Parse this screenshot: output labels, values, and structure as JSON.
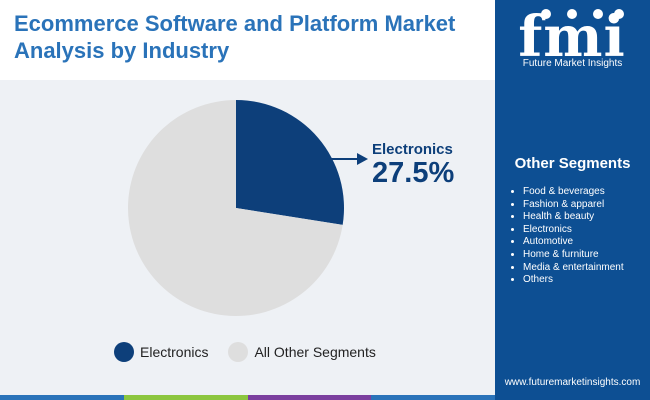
{
  "header": {
    "title": "Ecommerce Software and Platform Market Analysis by Industry"
  },
  "chart_data": {
    "type": "pie",
    "slices": [
      {
        "label": "Electronics",
        "value": 27.5,
        "color": "#0d3f7a"
      },
      {
        "label": "All Other Segments",
        "value": 72.5,
        "color": "#dedede"
      }
    ],
    "callout": {
      "label": "Electronics",
      "value": "27.5%"
    },
    "legend": [
      "Electronics",
      "All Other Segments"
    ],
    "legend_placement": "bottom"
  },
  "sidebar": {
    "brand_mark": "fmi",
    "brand_name": "Future Market Insights",
    "other_segments_title": "Other Segments",
    "segments": [
      "Food & beverages",
      "Fashion & apparel",
      "Health & beauty",
      "Electronics",
      "Automotive",
      "Home & furniture",
      "Media & entertainment",
      "Others"
    ],
    "website": "www.futuremarketinsights.com"
  },
  "colors": {
    "sidebar_bg": "#0d4f93",
    "title": "#2a73b9",
    "chart_bg": "#eef1f5",
    "accent_dark": "#0d3f7a",
    "bar_segments": [
      "#2a73b9",
      "#8cc63f",
      "#7b3f9e",
      "#2a73b9"
    ]
  }
}
